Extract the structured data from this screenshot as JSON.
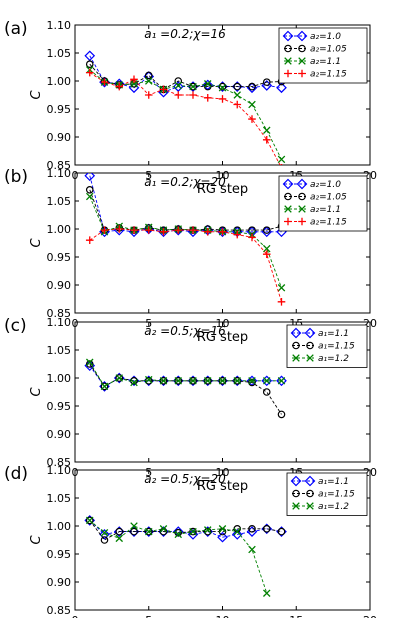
{
  "figure": {
    "xlabel": "RG step",
    "ylabel": "C",
    "xlim": [
      0,
      20
    ],
    "ylim": [
      0.85,
      1.1
    ],
    "xticks": [
      "0",
      "5",
      "10",
      "15",
      "20"
    ],
    "yticks": [
      "0.85",
      "0.90",
      "0.95",
      "1.00",
      "1.05",
      "1.10"
    ]
  },
  "series_styles": [
    {
      "marker": "diamond",
      "color": "#0000ff",
      "line": "#0000ff"
    },
    {
      "marker": "circle",
      "color": "#000000",
      "line": "#000000"
    },
    {
      "marker": "x",
      "color": "#008000",
      "line": "#008000"
    },
    {
      "marker": "plus",
      "color": "#ff0000",
      "line": "#ff0000"
    }
  ],
  "chart_data": [
    {
      "type": "line",
      "panel_letter": "(a)",
      "title_sub": "a1 = 0.2; χ = 16",
      "title": "a₁ =0.2;χ=16",
      "xlabel": "RG step",
      "ylabel": "C",
      "xlim": [
        0,
        20
      ],
      "ylim": [
        0.85,
        1.1
      ],
      "legend_position": "top-right",
      "grid": false,
      "series": [
        {
          "name": "a₂=1.0",
          "x": [
            1,
            2,
            3,
            4,
            5,
            6,
            7,
            8,
            9,
            10,
            11,
            12,
            13,
            14
          ],
          "y": [
            1.045,
            0.998,
            0.995,
            0.988,
            1.008,
            0.98,
            0.99,
            0.99,
            0.993,
            0.99,
            0.99,
            0.988,
            0.992,
            0.988
          ]
        },
        {
          "name": "a₂=1.05",
          "x": [
            1,
            2,
            3,
            4,
            5,
            6,
            7,
            8,
            9,
            10,
            11,
            12,
            13,
            14
          ],
          "y": [
            1.03,
            1.0,
            0.993,
            0.995,
            1.01,
            0.985,
            1.0,
            0.99,
            0.99,
            0.99,
            0.99,
            0.99,
            0.998,
            0.999
          ]
        },
        {
          "name": "a₂=1.1",
          "x": [
            1,
            2,
            3,
            4,
            5,
            6,
            7,
            8,
            9,
            10,
            11,
            12,
            13,
            14
          ],
          "y": [
            1.02,
            0.998,
            0.993,
            0.995,
            1.0,
            0.985,
            0.992,
            0.99,
            0.995,
            0.988,
            0.975,
            0.958,
            0.912,
            0.86
          ]
        },
        {
          "name": "a₂=1.15",
          "x": [
            1,
            2,
            3,
            4,
            5,
            6,
            7,
            8,
            9,
            10,
            11,
            12,
            13,
            14
          ],
          "y": [
            1.015,
            0.998,
            0.99,
            1.003,
            0.975,
            0.985,
            0.975,
            0.975,
            0.97,
            0.968,
            0.958,
            0.932,
            0.895,
            0.845
          ]
        }
      ]
    },
    {
      "type": "line",
      "panel_letter": "(b)",
      "title": "a₁ =0.2;χ=20",
      "xlabel": "RG step",
      "ylabel": "C",
      "xlim": [
        0,
        20
      ],
      "ylim": [
        0.85,
        1.1
      ],
      "legend_position": "top-right",
      "grid": false,
      "series": [
        {
          "name": "a₂=1.0",
          "x": [
            1,
            2,
            3,
            4,
            5,
            6,
            7,
            8,
            9,
            10,
            11,
            12,
            13,
            14
          ],
          "y": [
            1.095,
            0.995,
            0.998,
            0.995,
            1.0,
            0.995,
            0.998,
            0.995,
            0.998,
            0.995,
            0.995,
            0.995,
            0.995,
            0.995
          ]
        },
        {
          "name": "a₂=1.05",
          "x": [
            1,
            2,
            3,
            4,
            5,
            6,
            7,
            8,
            9,
            10,
            11,
            12,
            13,
            14
          ],
          "y": [
            1.07,
            0.998,
            1.002,
            0.998,
            1.002,
            0.998,
            1.0,
            0.998,
            1.0,
            0.998,
            0.998,
            0.998,
            0.998,
            1.005
          ]
        },
        {
          "name": "a₂=1.1",
          "x": [
            1,
            2,
            3,
            4,
            5,
            6,
            7,
            8,
            9,
            10,
            11,
            12,
            13,
            14
          ],
          "y": [
            1.058,
            0.995,
            1.005,
            0.998,
            1.003,
            0.998,
            1.0,
            0.998,
            0.998,
            0.995,
            0.995,
            0.99,
            0.965,
            0.895
          ]
        },
        {
          "name": "a₂=1.15",
          "x": [
            1,
            2,
            3,
            4,
            5,
            6,
            7,
            8,
            9,
            10,
            11,
            12,
            13,
            14
          ],
          "y": [
            0.98,
            0.998,
            1.0,
            0.998,
            0.998,
            0.995,
            0.998,
            0.998,
            0.995,
            0.995,
            0.99,
            0.985,
            0.955,
            0.87
          ]
        }
      ]
    },
    {
      "type": "line",
      "panel_letter": "(c)",
      "title": "a₂ =0.5;χ=16",
      "xlabel": "RG step",
      "ylabel": "C",
      "xlim": [
        0,
        20
      ],
      "ylim": [
        0.85,
        1.1
      ],
      "legend_position": "top-right",
      "grid": false,
      "series": [
        {
          "name": "a₁=1.1",
          "x": [
            1,
            2,
            3,
            4,
            5,
            6,
            7,
            8,
            9,
            10,
            11,
            12,
            13,
            14
          ],
          "y": [
            1.022,
            0.985,
            1.0,
            0.995,
            0.995,
            0.995,
            0.995,
            0.995,
            0.995,
            0.995,
            0.995,
            0.995,
            0.995,
            0.995
          ]
        },
        {
          "name": "a₁=1.15",
          "x": [
            1,
            2,
            3,
            4,
            5,
            6,
            7,
            8,
            9,
            10,
            11,
            12,
            13,
            14
          ],
          "y": [
            1.025,
            0.985,
            1.0,
            0.995,
            0.995,
            0.995,
            0.995,
            0.995,
            0.995,
            0.995,
            0.995,
            0.992,
            0.975,
            0.935
          ]
        },
        {
          "name": "a₁=1.2",
          "x": [
            1,
            2,
            3,
            4,
            5,
            6,
            7,
            8,
            9,
            10,
            11,
            12,
            13,
            14
          ],
          "y": [
            1.028,
            0.985,
            1.0,
            0.992,
            0.997,
            0.995,
            0.995,
            0.995,
            0.995,
            0.995,
            0.995,
            0.995,
            0.995,
            0.995
          ]
        }
      ]
    },
    {
      "type": "line",
      "panel_letter": "(d)",
      "title": "a₂ =0.5;χ=20",
      "xlabel": "RG step",
      "ylabel": "C",
      "xlim": [
        0,
        20
      ],
      "ylim": [
        0.85,
        1.1
      ],
      "legend_position": "top-right",
      "grid": false,
      "series": [
        {
          "name": "a₁=1.1",
          "x": [
            1,
            2,
            3,
            4,
            5,
            6,
            7,
            8,
            9,
            10,
            11,
            12,
            13,
            14
          ],
          "y": [
            1.01,
            0.985,
            0.99,
            0.99,
            0.99,
            0.99,
            0.99,
            0.985,
            0.99,
            0.98,
            0.985,
            0.99,
            0.995,
            0.99
          ]
        },
        {
          "name": "a₁=1.15",
          "x": [
            1,
            2,
            3,
            4,
            5,
            6,
            7,
            8,
            9,
            10,
            11,
            12,
            13,
            14
          ],
          "y": [
            1.01,
            0.975,
            0.99,
            0.99,
            0.99,
            0.99,
            0.988,
            0.99,
            0.99,
            0.99,
            0.995,
            0.995,
            0.995,
            0.99
          ]
        },
        {
          "name": "a₁=1.2",
          "x": [
            1,
            2,
            3,
            4,
            5,
            6,
            7,
            8,
            9,
            10,
            11,
            12,
            13
          ],
          "y": [
            1.01,
            0.988,
            0.978,
            1.0,
            0.99,
            0.995,
            0.985,
            0.99,
            0.993,
            0.995,
            0.99,
            0.958,
            0.88
          ]
        }
      ]
    }
  ]
}
